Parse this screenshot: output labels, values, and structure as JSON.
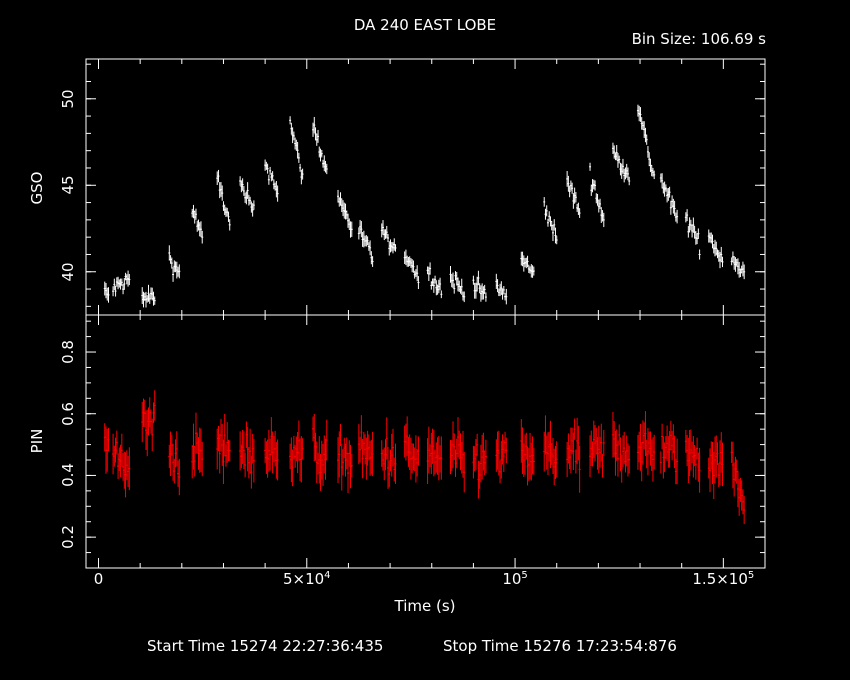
{
  "chart_data": {
    "type": "line",
    "title": "DA 240 EAST LOBE",
    "bin_size_label": "Bin Size: 106.69 s",
    "xlabel": "Time (s)",
    "xlim": [
      -3000,
      160000
    ],
    "x_ticks": [
      {
        "value": 0,
        "label": "0"
      },
      {
        "value": 50000,
        "label": "5×10",
        "exp": "4"
      },
      {
        "value": 100000,
        "label": "10",
        "exp": "5"
      },
      {
        "value": 150000,
        "label": "1.5×10",
        "exp": "5"
      }
    ],
    "start_time": "Start Time 15274 22:27:36:435",
    "stop_time": "Stop Time 15276 17:23:54:876",
    "panels": [
      {
        "name": "GSO",
        "ylabel": "GSO",
        "color": "#ffffff",
        "ylim": [
          37.5,
          52.3
        ],
        "y_ticks": [
          40,
          45,
          50
        ],
        "series": [
          {
            "t0": 1500,
            "t1": 2500,
            "y0": 38.8,
            "y1": 38.6
          },
          {
            "t0": 3500,
            "t1": 7500,
            "y0": 39.0,
            "y1": 39.6
          },
          {
            "t0": 10500,
            "t1": 13500,
            "y0": 38.4,
            "y1": 38.6
          },
          {
            "t0": 17000,
            "t1": 19500,
            "y0": 40.8,
            "y1": 39.8
          },
          {
            "t0": 22500,
            "t1": 25000,
            "y0": 43.7,
            "y1": 41.8
          },
          {
            "t0": 28500,
            "t1": 31500,
            "y0": 45.5,
            "y1": 42.7
          },
          {
            "t0": 34000,
            "t1": 37500,
            "y0": 45.0,
            "y1": 43.4
          },
          {
            "t0": 40000,
            "t1": 43000,
            "y0": 46.3,
            "y1": 44.8
          },
          {
            "t0": 46000,
            "t1": 49000,
            "y0": 48.6,
            "y1": 45.5
          },
          {
            "t0": 51500,
            "t1": 55000,
            "y0": 48.5,
            "y1": 45.6
          },
          {
            "t0": 57500,
            "t1": 61000,
            "y0": 44.4,
            "y1": 42.4
          },
          {
            "t0": 62500,
            "t1": 66000,
            "y0": 42.4,
            "y1": 40.7
          },
          {
            "t0": 68000,
            "t1": 71500,
            "y0": 42.5,
            "y1": 40.8
          },
          {
            "t0": 73500,
            "t1": 77000,
            "y0": 41.2,
            "y1": 39.6
          },
          {
            "t0": 79000,
            "t1": 82500,
            "y0": 40.0,
            "y1": 38.9
          },
          {
            "t0": 84500,
            "t1": 88000,
            "y0": 39.7,
            "y1": 38.8
          },
          {
            "t0": 90000,
            "t1": 93000,
            "y0": 39.4,
            "y1": 38.6
          },
          {
            "t0": 95500,
            "t1": 98000,
            "y0": 39.2,
            "y1": 38.5
          },
          {
            "t0": 101500,
            "t1": 104500,
            "y0": 40.8,
            "y1": 39.8
          },
          {
            "t0": 107000,
            "t1": 110000,
            "y0": 43.8,
            "y1": 41.9
          },
          {
            "t0": 112500,
            "t1": 115500,
            "y0": 45.3,
            "y1": 43.5
          },
          {
            "t0": 118000,
            "t1": 121500,
            "y0": 45.6,
            "y1": 42.9
          },
          {
            "t0": 123500,
            "t1": 127500,
            "y0": 46.9,
            "y1": 45.6
          },
          {
            "t0": 129500,
            "t1": 133500,
            "y0": 49.6,
            "y1": 45.3
          },
          {
            "t0": 135000,
            "t1": 139000,
            "y0": 45.4,
            "y1": 43.0
          },
          {
            "t0": 141000,
            "t1": 144500,
            "y0": 43.1,
            "y1": 41.5
          },
          {
            "t0": 146500,
            "t1": 150000,
            "y0": 42.1,
            "y1": 40.6
          },
          {
            "t0": 152000,
            "t1": 155000,
            "y0": 40.9,
            "y1": 39.9
          }
        ]
      },
      {
        "name": "PIN",
        "ylabel": "PIN",
        "color": "#ff0000",
        "ylim": [
          0.1,
          0.92
        ],
        "y_ticks": [
          0.2,
          0.4,
          0.6,
          0.8
        ],
        "series": [
          {
            "t0": 1500,
            "t1": 2500,
            "y0": 0.5,
            "y1": 0.48
          },
          {
            "t0": 3500,
            "t1": 7500,
            "y0": 0.46,
            "y1": 0.44
          },
          {
            "t0": 10500,
            "t1": 13500,
            "y0": 0.55,
            "y1": 0.58
          },
          {
            "t0": 17000,
            "t1": 19500,
            "y0": 0.47,
            "y1": 0.45
          },
          {
            "t0": 22500,
            "t1": 25000,
            "y0": 0.48,
            "y1": 0.46
          },
          {
            "t0": 28500,
            "t1": 31500,
            "y0": 0.5,
            "y1": 0.47
          },
          {
            "t0": 34000,
            "t1": 37500,
            "y0": 0.49,
            "y1": 0.46
          },
          {
            "t0": 40000,
            "t1": 43000,
            "y0": 0.48,
            "y1": 0.46
          },
          {
            "t0": 46000,
            "t1": 49000,
            "y0": 0.5,
            "y1": 0.47
          },
          {
            "t0": 51500,
            "t1": 55000,
            "y0": 0.48,
            "y1": 0.45
          },
          {
            "t0": 57500,
            "t1": 61000,
            "y0": 0.47,
            "y1": 0.45
          },
          {
            "t0": 62500,
            "t1": 66000,
            "y0": 0.48,
            "y1": 0.45
          },
          {
            "t0": 68000,
            "t1": 71500,
            "y0": 0.47,
            "y1": 0.45
          },
          {
            "t0": 73500,
            "t1": 77000,
            "y0": 0.48,
            "y1": 0.44
          },
          {
            "t0": 79000,
            "t1": 82500,
            "y0": 0.47,
            "y1": 0.45
          },
          {
            "t0": 84500,
            "t1": 88000,
            "y0": 0.46,
            "y1": 0.44
          },
          {
            "t0": 90000,
            "t1": 93000,
            "y0": 0.45,
            "y1": 0.44
          },
          {
            "t0": 95500,
            "t1": 98000,
            "y0": 0.46,
            "y1": 0.45
          },
          {
            "t0": 101500,
            "t1": 104500,
            "y0": 0.47,
            "y1": 0.45
          },
          {
            "t0": 107000,
            "t1": 110000,
            "y0": 0.48,
            "y1": 0.46
          },
          {
            "t0": 112500,
            "t1": 115500,
            "y0": 0.48,
            "y1": 0.46
          },
          {
            "t0": 118000,
            "t1": 121500,
            "y0": 0.48,
            "y1": 0.46
          },
          {
            "t0": 123500,
            "t1": 127500,
            "y0": 0.5,
            "y1": 0.47
          },
          {
            "t0": 129500,
            "t1": 133500,
            "y0": 0.5,
            "y1": 0.47
          },
          {
            "t0": 135000,
            "t1": 139000,
            "y0": 0.49,
            "y1": 0.46
          },
          {
            "t0": 141000,
            "t1": 144500,
            "y0": 0.48,
            "y1": 0.45
          },
          {
            "t0": 146500,
            "t1": 150000,
            "y0": 0.46,
            "y1": 0.44
          },
          {
            "t0": 152000,
            "t1": 155000,
            "y0": 0.44,
            "y1": 0.3
          }
        ]
      }
    ]
  }
}
